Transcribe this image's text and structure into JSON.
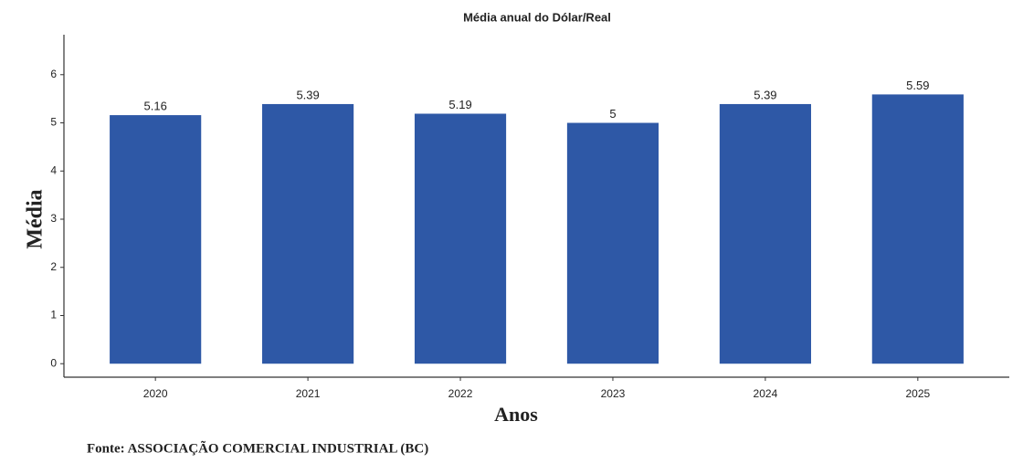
{
  "chart_data": {
    "type": "bar",
    "title": "Média anual do Dólar/Real",
    "x_label": "Anos",
    "y_label": "Média",
    "source": "Fonte: ASSOCIAÇÃO COMERCIAL INDUSTRIAL (BC)",
    "categories": [
      "2020",
      "2021",
      "2022",
      "2023",
      "2024",
      "2025"
    ],
    "values": [
      5.16,
      5.39,
      5.19,
      5,
      5.39,
      5.59
    ],
    "color": "#2e58a6",
    "ylim": [
      -0.28,
      6.83
    ],
    "yticks": [
      0,
      1,
      2,
      3,
      4,
      5,
      6
    ],
    "grid": false
  }
}
